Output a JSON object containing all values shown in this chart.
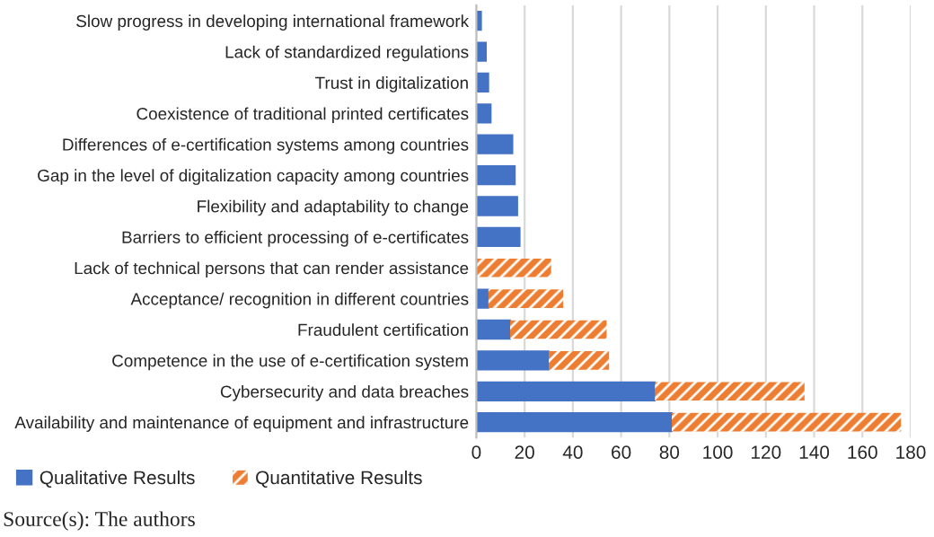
{
  "chart_data": {
    "type": "bar",
    "orientation": "horizontal",
    "stacked": true,
    "categories": [
      "Slow progress in developing international framework",
      "Lack of standardized regulations",
      "Trust in digitalization",
      "Coexistence of traditional printed certificates",
      "Differences of e-certification systems among countries",
      "Gap in the level of digitalization capacity among countries",
      "Flexibility and adaptability to change",
      "Barriers to efficient processing of e-certificates",
      "Lack of technical persons that can render assistance",
      "Acceptance/ recognition in different countries",
      "Fraudulent certification",
      "Competence in the use of e-certification system",
      "Cybersecurity and data breaches",
      "Availability and maintenance of equipment and infrastructure"
    ],
    "series": [
      {
        "name": "Qualitative Results",
        "color": "#4472c4",
        "values": [
          2,
          4,
          5,
          6,
          15,
          16,
          17,
          18,
          0,
          5,
          14,
          30,
          74,
          81
        ]
      },
      {
        "name": "Quantitative Results",
        "color": "#ed7d31",
        "values": [
          0,
          0,
          0,
          0,
          0,
          0,
          0,
          0,
          31,
          31,
          40,
          25,
          62,
          95
        ]
      }
    ],
    "xlim": [
      0,
      180
    ],
    "xticks": [
      0,
      20,
      40,
      60,
      80,
      100,
      120,
      140,
      160,
      180
    ],
    "grid": "x",
    "legend": "bottom left",
    "annotations": [
      "Source(s): The authors"
    ]
  }
}
